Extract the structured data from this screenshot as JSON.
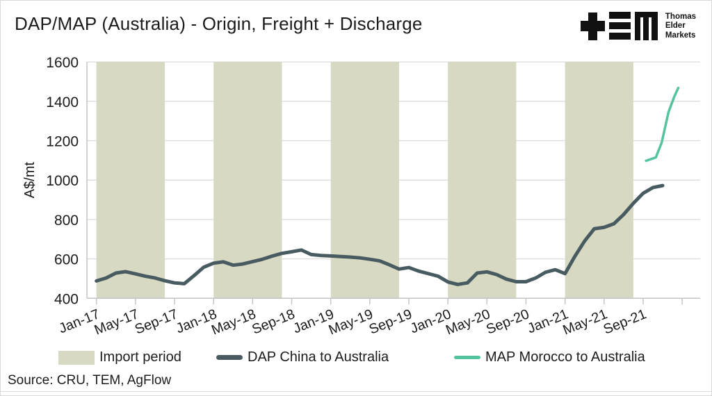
{
  "title": "DAP/MAP (Australia) - Origin, Freight + Discharge",
  "logo": {
    "brand_lines": [
      "Thomas",
      "Elder",
      "Markets"
    ]
  },
  "source": "Source: CRU, TEM, AgFlow",
  "colors": {
    "band": "#d8d9c3",
    "dap_line": "#485b60",
    "map_line": "#54c3a0",
    "grid": "#dcdcdc",
    "axis": "#c4c4c4",
    "text": "#1b1b1b"
  },
  "chart_data": {
    "type": "line",
    "title": "DAP/MAP (Australia) - Origin, Freight + Discharge",
    "xlabel": "",
    "ylabel": "A$/mt",
    "ylim": [
      400,
      1600
    ],
    "yticks": [
      400,
      600,
      800,
      1000,
      1200,
      1400,
      1600
    ],
    "grid": "horizontal",
    "legend_position": "bottom",
    "x_start": "Jan-17",
    "x_interval": "monthly",
    "x_tick_every_months": 4,
    "x_tick_labels": [
      "Jan-17",
      "May-17",
      "Sep-17",
      "Jan-18",
      "May-18",
      "Sep-18",
      "Jan-19",
      "May-19",
      "Sep-19",
      "Jan-20",
      "May-20",
      "Sep-20",
      "Jan-21",
      "May-21",
      "Sep-21"
    ],
    "bands": {
      "label": "Import period",
      "color": "#d8d9c3",
      "note": "shaded Jan-Aug each year, months indexed from Jan-17=0",
      "periods": [
        [
          0,
          7
        ],
        [
          12,
          19
        ],
        [
          24,
          31
        ],
        [
          36,
          43
        ],
        [
          48,
          55
        ]
      ]
    },
    "series": [
      {
        "name": "DAP China to Australia",
        "color": "#485b60",
        "start_month_index": 0,
        "start_label": "Jan-17",
        "end_label": "Nov-21",
        "values": [
          488,
          503,
          528,
          535,
          524,
          512,
          503,
          489,
          478,
          474,
          515,
          558,
          578,
          585,
          568,
          574,
          586,
          598,
          614,
          628,
          636,
          645,
          622,
          617,
          615,
          612,
          609,
          605,
          598,
          590,
          570,
          548,
          556,
          538,
          525,
          512,
          483,
          470,
          478,
          528,
          534,
          520,
          497,
          484,
          484,
          503,
          532,
          545,
          525,
          612,
          690,
          753,
          760,
          778,
          825,
          882,
          933,
          962,
          972
        ]
      },
      {
        "name": "MAP Morocco to Australia",
        "color": "#54c3a0",
        "start_label": "Sep-21",
        "end_label": "Dec-21",
        "x_months": [
          56.3,
          57.3,
          57.9,
          58.6,
          59.2,
          59.6
        ],
        "values": [
          1098,
          1115,
          1190,
          1345,
          1425,
          1468
        ]
      }
    ]
  }
}
